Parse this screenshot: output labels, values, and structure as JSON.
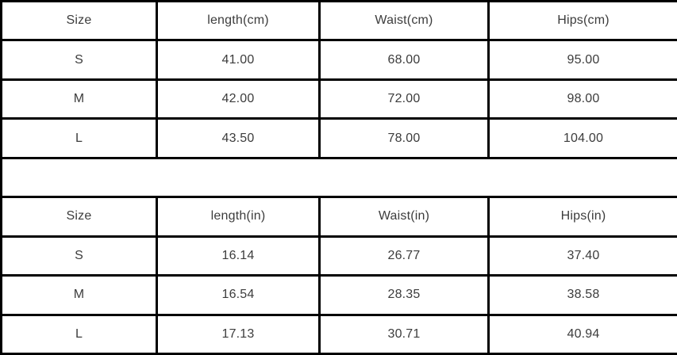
{
  "meta": {
    "background_color": "#ffffff",
    "border_color": "#000000",
    "text_color": "#3c3c3c"
  },
  "chart_data": [
    {
      "type": "table",
      "title": "",
      "columns": [
        "Size",
        "length(cm)",
        "Waist(cm)",
        "Hips(cm)"
      ],
      "rows": [
        [
          "S",
          "41.00",
          "68.00",
          "95.00"
        ],
        [
          "M",
          "42.00",
          "72.00",
          "98.00"
        ],
        [
          "L",
          "43.50",
          "78.00",
          "104.00"
        ]
      ]
    },
    {
      "type": "table",
      "title": "",
      "columns": [
        "Size",
        "length(in)",
        "Waist(in)",
        "Hips(in)"
      ],
      "rows": [
        [
          "S",
          "16.14",
          "26.77",
          "37.40"
        ],
        [
          "M",
          "16.54",
          "28.35",
          "38.58"
        ],
        [
          "L",
          "17.13",
          "30.71",
          "40.94"
        ]
      ]
    }
  ]
}
